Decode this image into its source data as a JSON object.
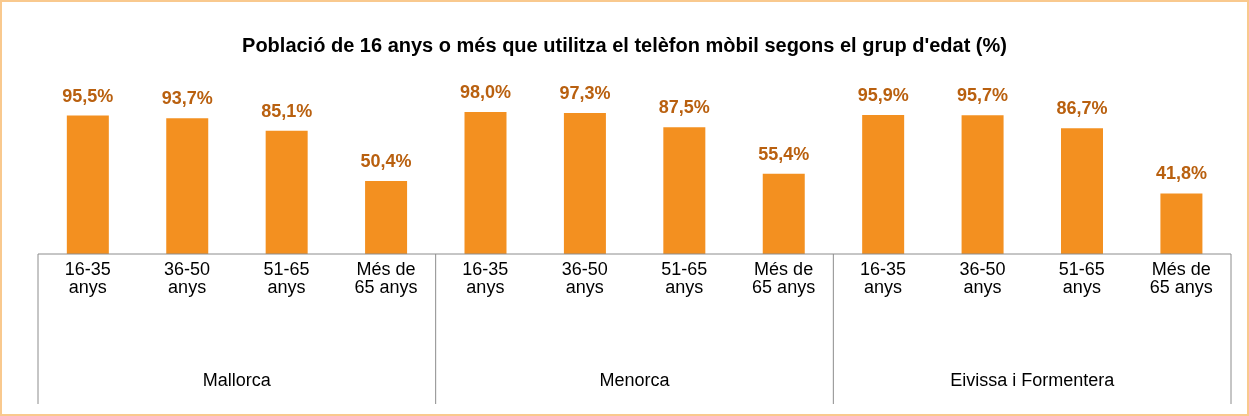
{
  "chart_data": {
    "type": "bar",
    "title": "Població de 16 anys o més que utilitza el telèfon mòbil segons el grup d'edat (%)",
    "categories": [
      "16-35 anys",
      "36-50 anys",
      "51-65 anys",
      "Més de 65 anys",
      "16-35 anys",
      "36-50 anys",
      "51-65 anys",
      "Més de 65 anys",
      "16-35 anys",
      "36-50 anys",
      "51-65 anys",
      "Més de 65 anys"
    ],
    "values": [
      95.5,
      93.7,
      85.1,
      50.4,
      98.0,
      97.3,
      87.5,
      55.4,
      95.9,
      95.7,
      86.7,
      41.8
    ],
    "value_labels": [
      "95,5%",
      "93,7%",
      "85,1%",
      "50,4%",
      "98,0%",
      "97,3%",
      "87,5%",
      "55,4%",
      "95,9%",
      "95,7%",
      "86,7%",
      "41,8%"
    ],
    "color": "#f39020",
    "annotations": [
      "Mallorca",
      "Menorca",
      "Eivissa i Formentera"
    ]
  }
}
